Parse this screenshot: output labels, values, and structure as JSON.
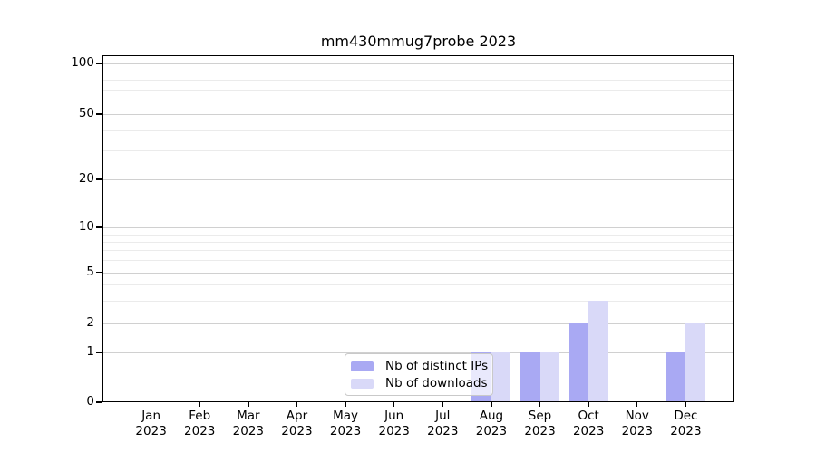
{
  "chart_data": {
    "type": "bar",
    "title": "mm430mmug7probe 2023",
    "categories": [
      "Jan 2023",
      "Feb 2023",
      "Mar 2023",
      "Apr 2023",
      "May 2023",
      "Jun 2023",
      "Jul 2023",
      "Aug 2023",
      "Sep 2023",
      "Oct 2023",
      "Nov 2023",
      "Dec 2023"
    ],
    "series": [
      {
        "name": "Nb of distinct IPs",
        "color": "#a9a9f3",
        "values": [
          0,
          0,
          0,
          0,
          0,
          0,
          0,
          1,
          1,
          2,
          0,
          1
        ]
      },
      {
        "name": "Nb of downloads",
        "color": "#d9d9f8",
        "values": [
          0,
          0,
          0,
          0,
          0,
          0,
          0,
          1,
          1,
          3,
          0,
          2
        ]
      }
    ],
    "xlabel": "",
    "ylabel": "",
    "y_scale": "log above 1, linear between 0 and 1 (symlog-like)",
    "y_ticks": [
      0,
      1,
      2,
      5,
      10,
      20,
      50,
      100
    ],
    "y_minor_gridlines": [
      3,
      4,
      6,
      7,
      8,
      9,
      30,
      40,
      60,
      70,
      80,
      90
    ],
    "ylim": [
      0,
      112
    ],
    "grid": true,
    "legend_position": "lower center, inside plot, semi-transparent box"
  }
}
